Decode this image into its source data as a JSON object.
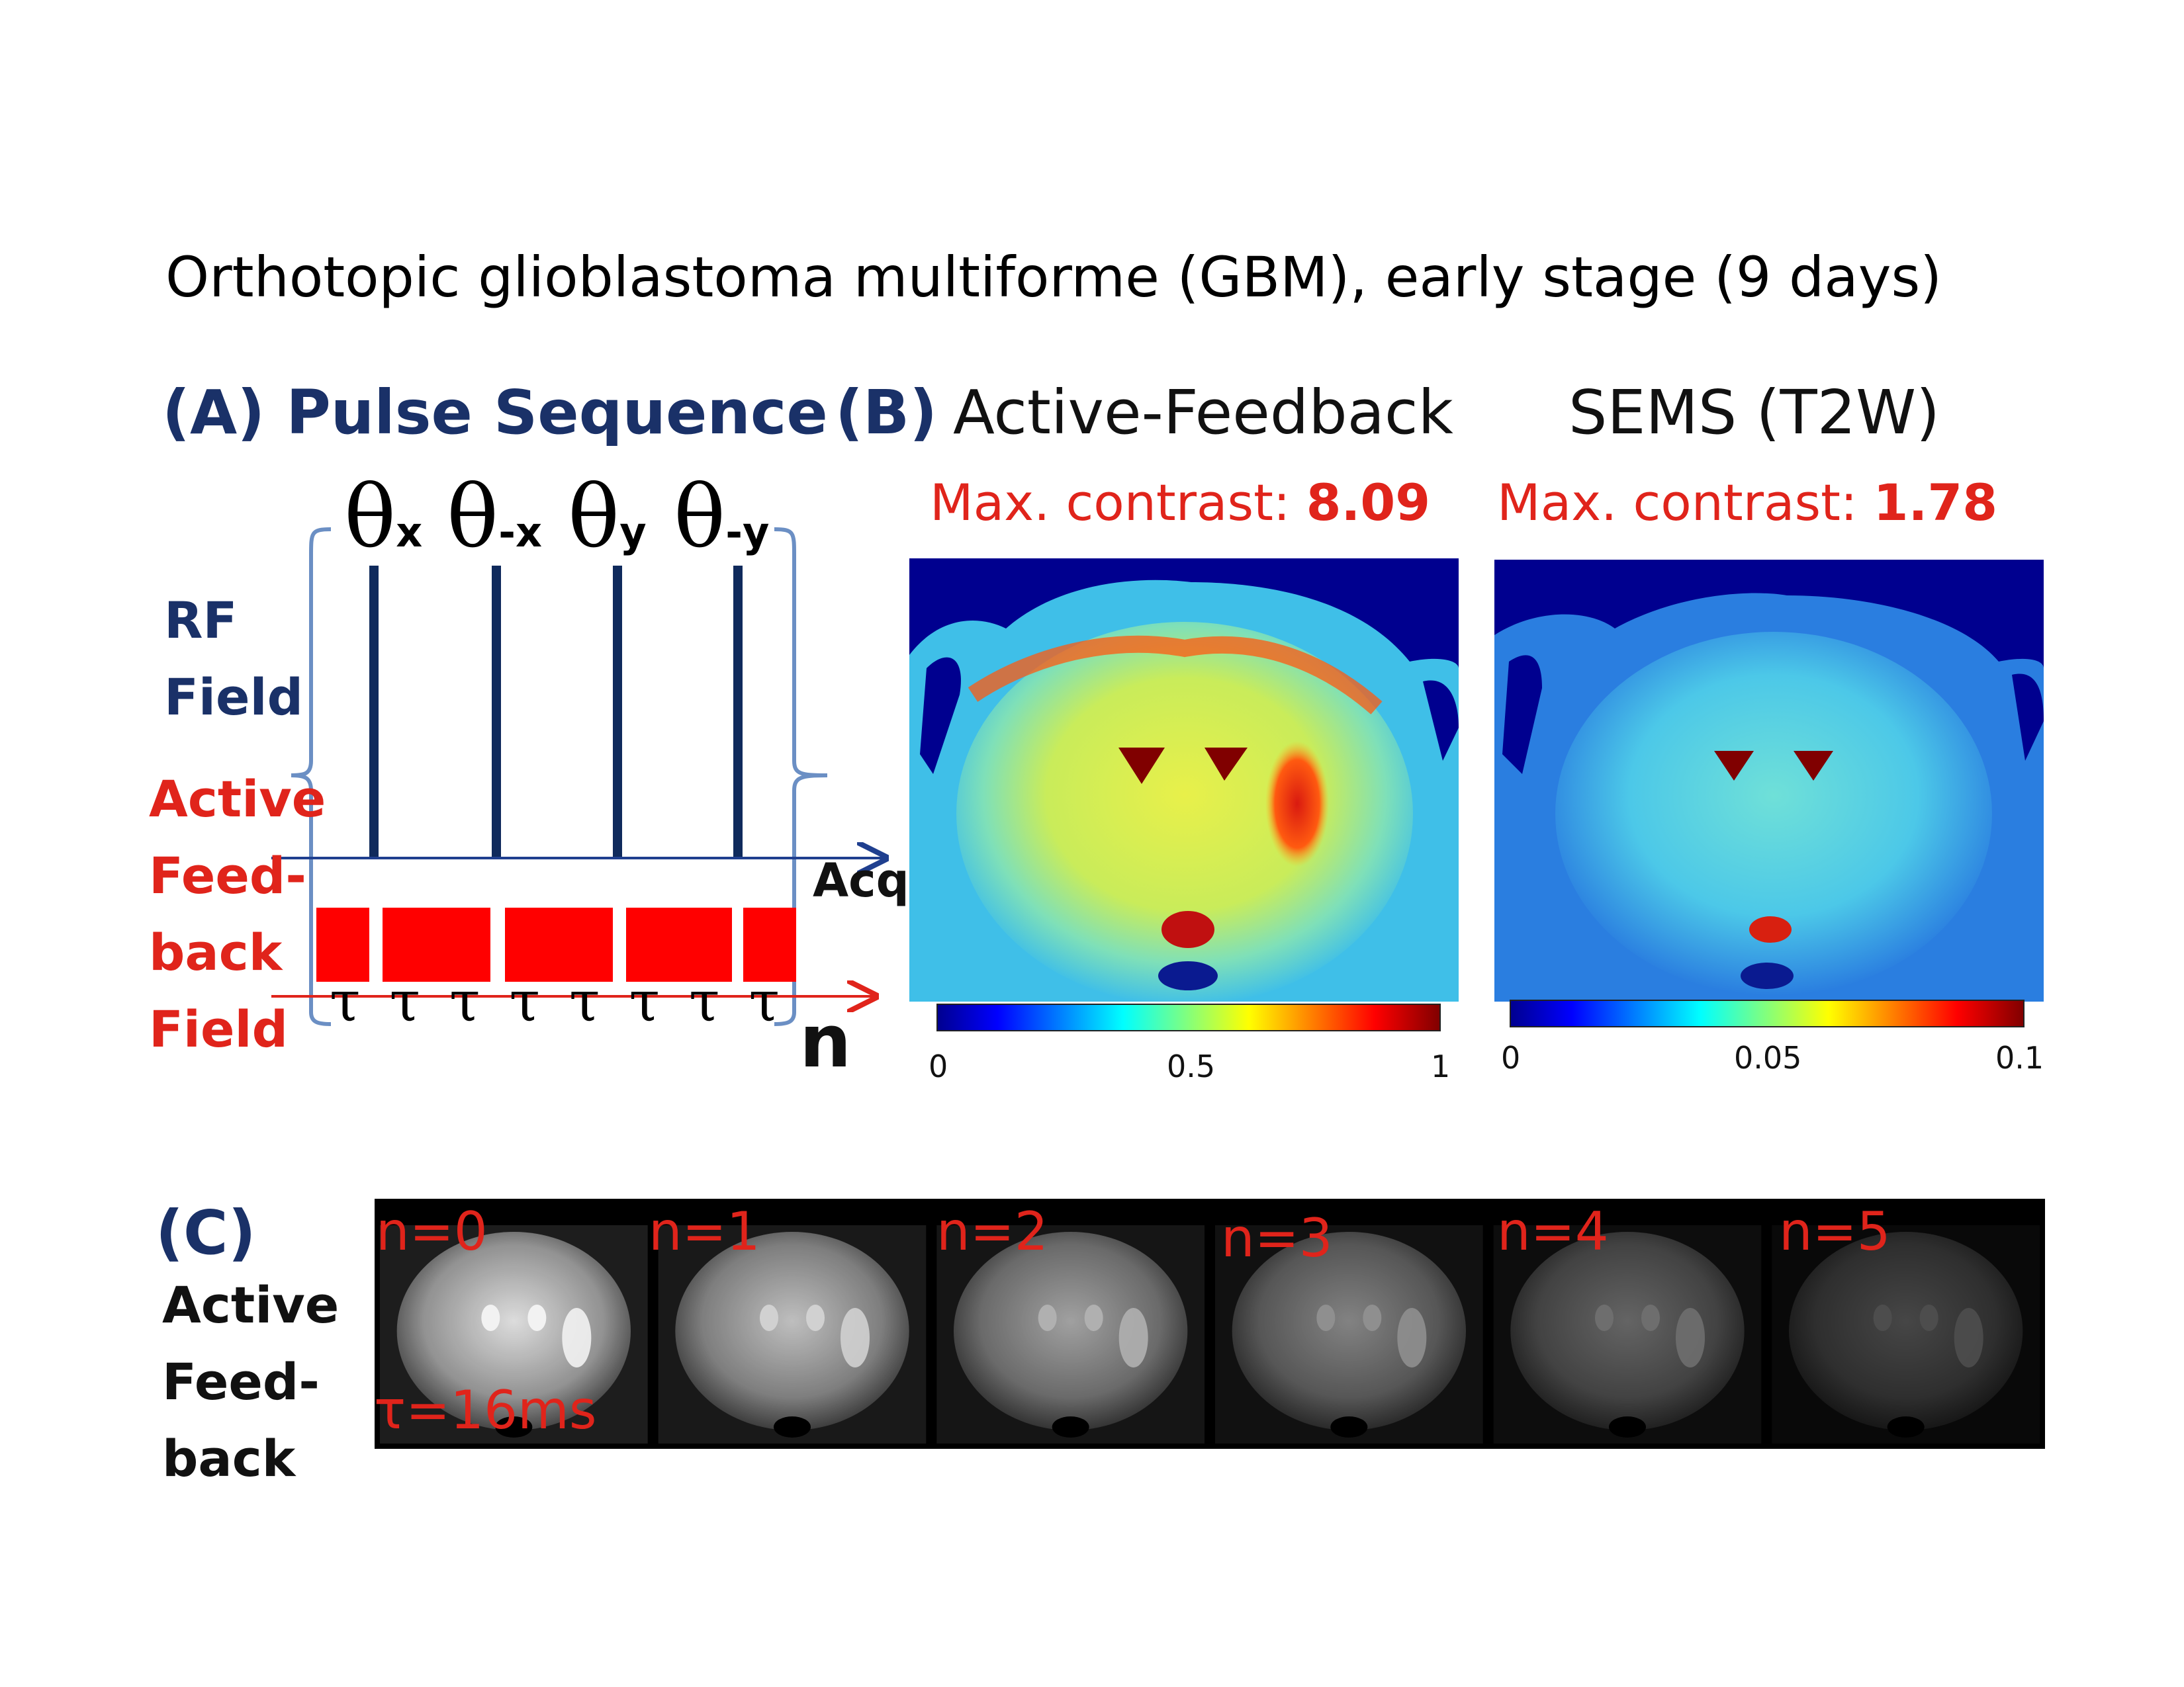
{
  "title": "Orthotopic glioblastoma multiforme (GBM), early stage (9 days)",
  "panel_a": {
    "label": "(A) Pulse Sequence",
    "pulses": [
      {
        "symbol": "θ",
        "sub": "x"
      },
      {
        "symbol": "θ",
        "sub": "-x"
      },
      {
        "symbol": "θ",
        "sub": "y"
      },
      {
        "symbol": "θ",
        "sub": "-y"
      }
    ],
    "rf_label": [
      "RF",
      "Field"
    ],
    "feedback_label": [
      "Active",
      "Feed-",
      "back",
      "Field"
    ],
    "acq_label": "Acq",
    "repeat_label": "n",
    "tau_symbol": "τ",
    "tau_count": 8,
    "colors": {
      "pulse": "#0f2a5c",
      "feedback": "#ff0000",
      "bracket": "#6b8fc4",
      "acq_arrow": "#1f3f8f",
      "feedback_arrow": "#e0241b"
    }
  },
  "panel_b": {
    "label": "(B)",
    "active_feedback": {
      "title": "Active-Feedback",
      "contrast_prefix": "Max. contrast: ",
      "contrast_value": "8.09",
      "colorbar_ticks": [
        "0",
        "0.5",
        "1"
      ]
    },
    "sems": {
      "title": "SEMS (T2W)",
      "contrast_prefix": "Max. contrast: ",
      "contrast_value": "1.78",
      "colorbar_ticks": [
        "0",
        "0.05",
        "0.1"
      ]
    },
    "colormap": "jet"
  },
  "panel_c": {
    "label": "(C)",
    "side_label": [
      "Active",
      "Feed-",
      "back"
    ],
    "frames": [
      "n=0",
      "n=1",
      "n=2",
      "n=3",
      "n=4",
      "n=5"
    ],
    "tau_value": "τ=16ms"
  }
}
